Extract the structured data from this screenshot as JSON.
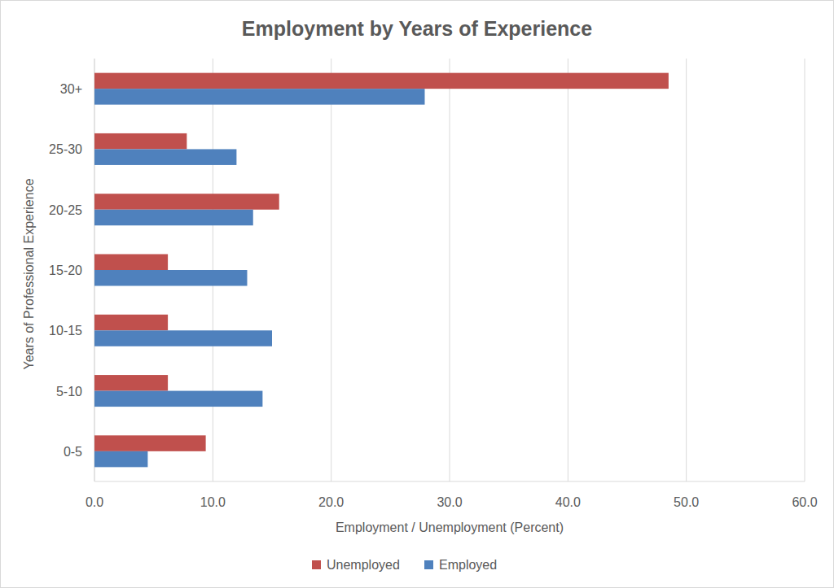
{
  "chart_data": {
    "type": "bar",
    "orientation": "horizontal",
    "title": "Employment by Years of Experience",
    "x_label": "Employment / Unemployment (Percent)",
    "y_label": "Years of Professional Experience",
    "categories": [
      "0-5",
      "5-10",
      "10-15",
      "15-20",
      "20-25",
      "25-30",
      "30+"
    ],
    "series": [
      {
        "name": "Unemployed",
        "color": "#c0504d",
        "values": [
          9.4,
          6.2,
          6.2,
          6.2,
          15.6,
          7.8,
          48.5
        ]
      },
      {
        "name": "Employed",
        "color": "#4f81bd",
        "values": [
          4.5,
          14.2,
          15.0,
          12.9,
          13.4,
          12.0,
          27.9
        ]
      }
    ],
    "xlim": [
      0,
      60
    ],
    "xticks": [
      {
        "value": 0,
        "label": "0.0"
      },
      {
        "value": 10,
        "label": "10.0"
      },
      {
        "value": 20,
        "label": "20.0"
      },
      {
        "value": 30,
        "label": "30.0"
      },
      {
        "value": 40,
        "label": "40.0"
      },
      {
        "value": 50,
        "label": "50.0"
      },
      {
        "value": 60,
        "label": "60.0"
      }
    ],
    "grid": true,
    "legend": "bottom"
  }
}
